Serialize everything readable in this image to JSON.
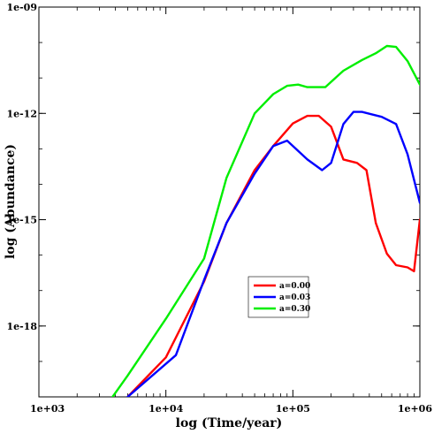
{
  "chart_data": {
    "type": "line",
    "title": "",
    "xlabel": "log (Time/year)",
    "ylabel": "log (Abundance)",
    "x_scale": "log",
    "y_scale": "log",
    "xlim": [
      1000,
      1000000
    ],
    "ylim": [
      1e-20,
      1e-09
    ],
    "x_ticks": [
      {
        "value": 1000,
        "label": "1e+03"
      },
      {
        "value": 10000,
        "label": "1e+04"
      },
      {
        "value": 100000,
        "label": "1e+05"
      },
      {
        "value": 1000000,
        "label": "1e+06"
      }
    ],
    "y_ticks": [
      {
        "value": 1e-09,
        "label": "1e-09"
      },
      {
        "value": 1e-12,
        "label": "1e-12"
      },
      {
        "value": 1e-15,
        "label": "1e-15"
      },
      {
        "value": 1e-18,
        "label": "1e-18"
      }
    ],
    "grid": false,
    "legend_position": "center-right",
    "series": [
      {
        "name": "a=0.00",
        "color": "#ff0000",
        "points": [
          [
            5000,
            1e-20
          ],
          [
            10000,
            1.3e-19
          ],
          [
            20000,
            1.8e-17
          ],
          [
            30000,
            8e-16
          ],
          [
            50000,
            2.5e-14
          ],
          [
            70000,
            1.2e-13
          ],
          [
            100000,
            5.2e-13
          ],
          [
            130000,
            8.5e-13
          ],
          [
            160000,
            8.5e-13
          ],
          [
            200000,
            4.2e-13
          ],
          [
            250000,
            5e-14
          ],
          [
            320000,
            4e-14
          ],
          [
            380000,
            2.5e-14
          ],
          [
            450000,
            8e-16
          ],
          [
            550000,
            1.1e-16
          ],
          [
            650000,
            5.2e-17
          ],
          [
            800000,
            4.5e-17
          ],
          [
            900000,
            3.5e-17
          ],
          [
            1000000,
            1e-15
          ]
        ]
      },
      {
        "name": "a=0.03",
        "color": "#0000ff",
        "points": [
          [
            5000,
            1e-20
          ],
          [
            12000,
            1.5e-19
          ],
          [
            20000,
            2e-17
          ],
          [
            30000,
            8e-16
          ],
          [
            50000,
            2e-14
          ],
          [
            70000,
            1.2e-13
          ],
          [
            90000,
            1.7e-13
          ],
          [
            130000,
            5e-14
          ],
          [
            170000,
            2.5e-14
          ],
          [
            200000,
            4e-14
          ],
          [
            250000,
            5e-13
          ],
          [
            300000,
            1.1e-12
          ],
          [
            350000,
            1.1e-12
          ],
          [
            500000,
            8e-13
          ],
          [
            650000,
            5e-13
          ],
          [
            800000,
            7e-14
          ],
          [
            1000000,
            3e-15
          ]
        ]
      },
      {
        "name": "a=0.30",
        "color": "#00ee00",
        "points": [
          [
            3800,
            1e-20
          ],
          [
            5000,
            4e-20
          ],
          [
            10000,
            1.6e-18
          ],
          [
            20000,
            8e-17
          ],
          [
            30000,
            1.5e-14
          ],
          [
            50000,
            1e-12
          ],
          [
            70000,
            3.5e-12
          ],
          [
            90000,
            6e-12
          ],
          [
            110000,
            6.5e-12
          ],
          [
            130000,
            5.5e-12
          ],
          [
            180000,
            5.5e-12
          ],
          [
            250000,
            1.6e-11
          ],
          [
            350000,
            3.2e-11
          ],
          [
            450000,
            5e-11
          ],
          [
            550000,
            8e-11
          ],
          [
            650000,
            7.5e-11
          ],
          [
            800000,
            3e-11
          ],
          [
            1000000,
            6.5e-12
          ]
        ]
      }
    ]
  }
}
